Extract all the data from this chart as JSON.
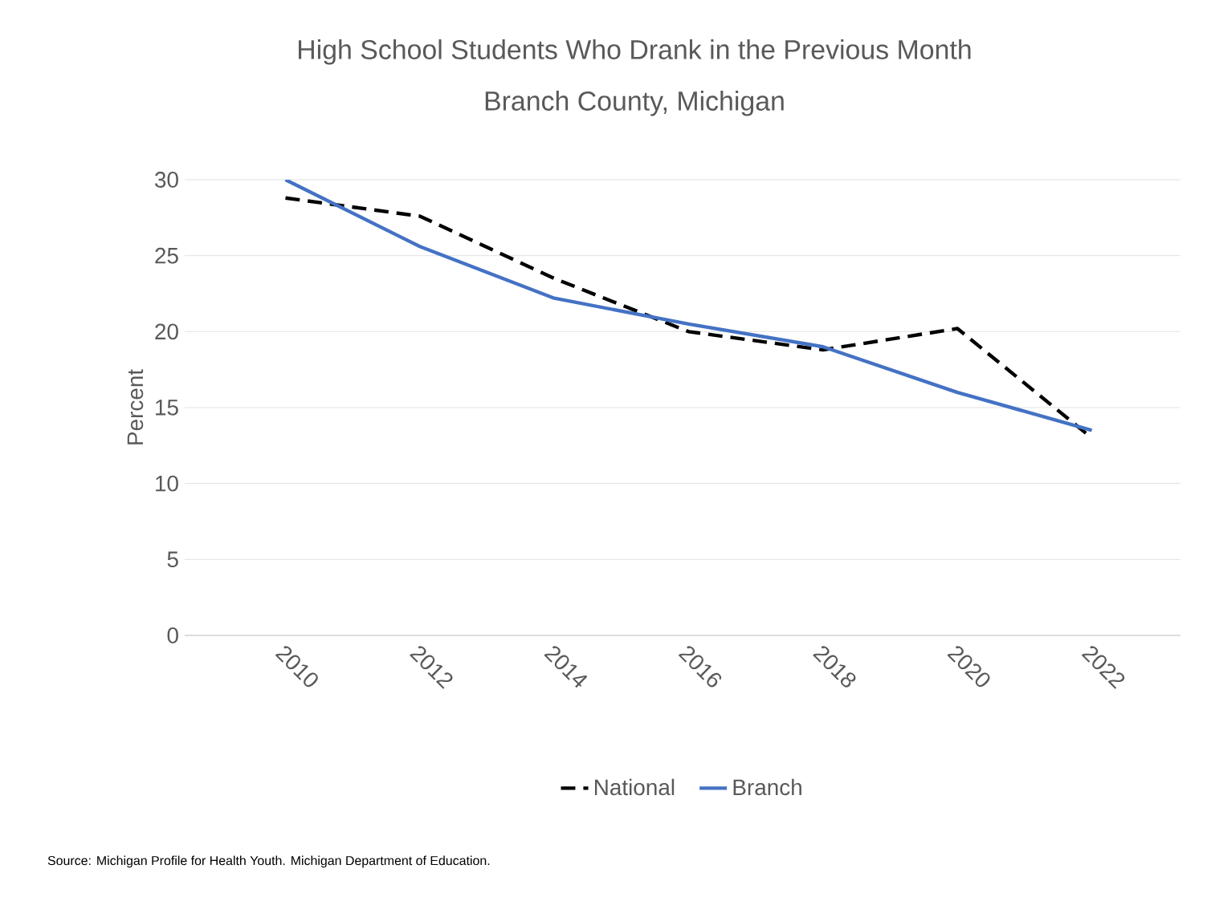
{
  "chart_data": {
    "type": "line",
    "title": "High School Students Who Drank in the Previous Month",
    "subtitle": "Branch County, Michigan",
    "ylabel": "Percent",
    "categories": [
      "2010",
      "2012",
      "2014",
      "2016",
      "2018",
      "2020",
      "2022"
    ],
    "series": [
      {
        "name": "National",
        "color": "#000000",
        "line_style": "dashed",
        "values": [
          28.8,
          27.6,
          23.5,
          20.0,
          18.8,
          20.2,
          13.0
        ]
      },
      {
        "name": "Branch",
        "color": "#4472c4",
        "line_style": "solid",
        "values": [
          30.0,
          25.6,
          22.2,
          20.5,
          19.0,
          16.0,
          13.5
        ]
      }
    ],
    "ylim": [
      0,
      30
    ],
    "yticks": [
      0,
      5,
      10,
      15,
      20,
      25,
      30
    ],
    "grid": "y",
    "legend": "bottom",
    "marker": "none",
    "annotations": [
      "Source: Michigan Profile for Health Youth. Michigan Department of Education."
    ]
  }
}
